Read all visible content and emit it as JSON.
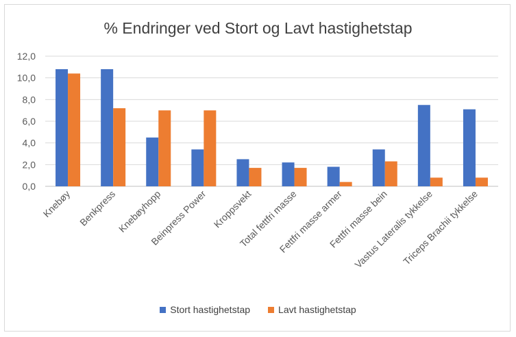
{
  "chart_data": {
    "type": "bar",
    "title": "% Endringer ved Stort og Lavt hastighetstap",
    "categories": [
      "Knebøy",
      "Benkpress",
      "Knebøyhopp",
      "Beinpress Power",
      "Kroppsvekt",
      "Total fettfri masse",
      "Fettfri masse armer",
      "Fettfri masse bein",
      "Vastus Lateralis tykkelse",
      "Triceps Brachii tykkelse"
    ],
    "series": [
      {
        "name": "Stort hastighetstap",
        "color": "#4472c4",
        "values": [
          10.8,
          10.8,
          4.5,
          3.4,
          2.5,
          2.2,
          1.8,
          3.4,
          7.5,
          7.1
        ]
      },
      {
        "name": "Lavt hastighetstap",
        "color": "#ed7d31",
        "values": [
          10.4,
          7.2,
          7.0,
          7.0,
          1.7,
          1.7,
          0.4,
          2.3,
          0.8,
          0.8
        ]
      }
    ],
    "ylim": [
      0,
      12
    ],
    "yticks": [
      "0,0",
      "2,0",
      "4,0",
      "6,0",
      "8,0",
      "10,0",
      "12,0"
    ],
    "grid": true,
    "legend_position": "bottom"
  }
}
